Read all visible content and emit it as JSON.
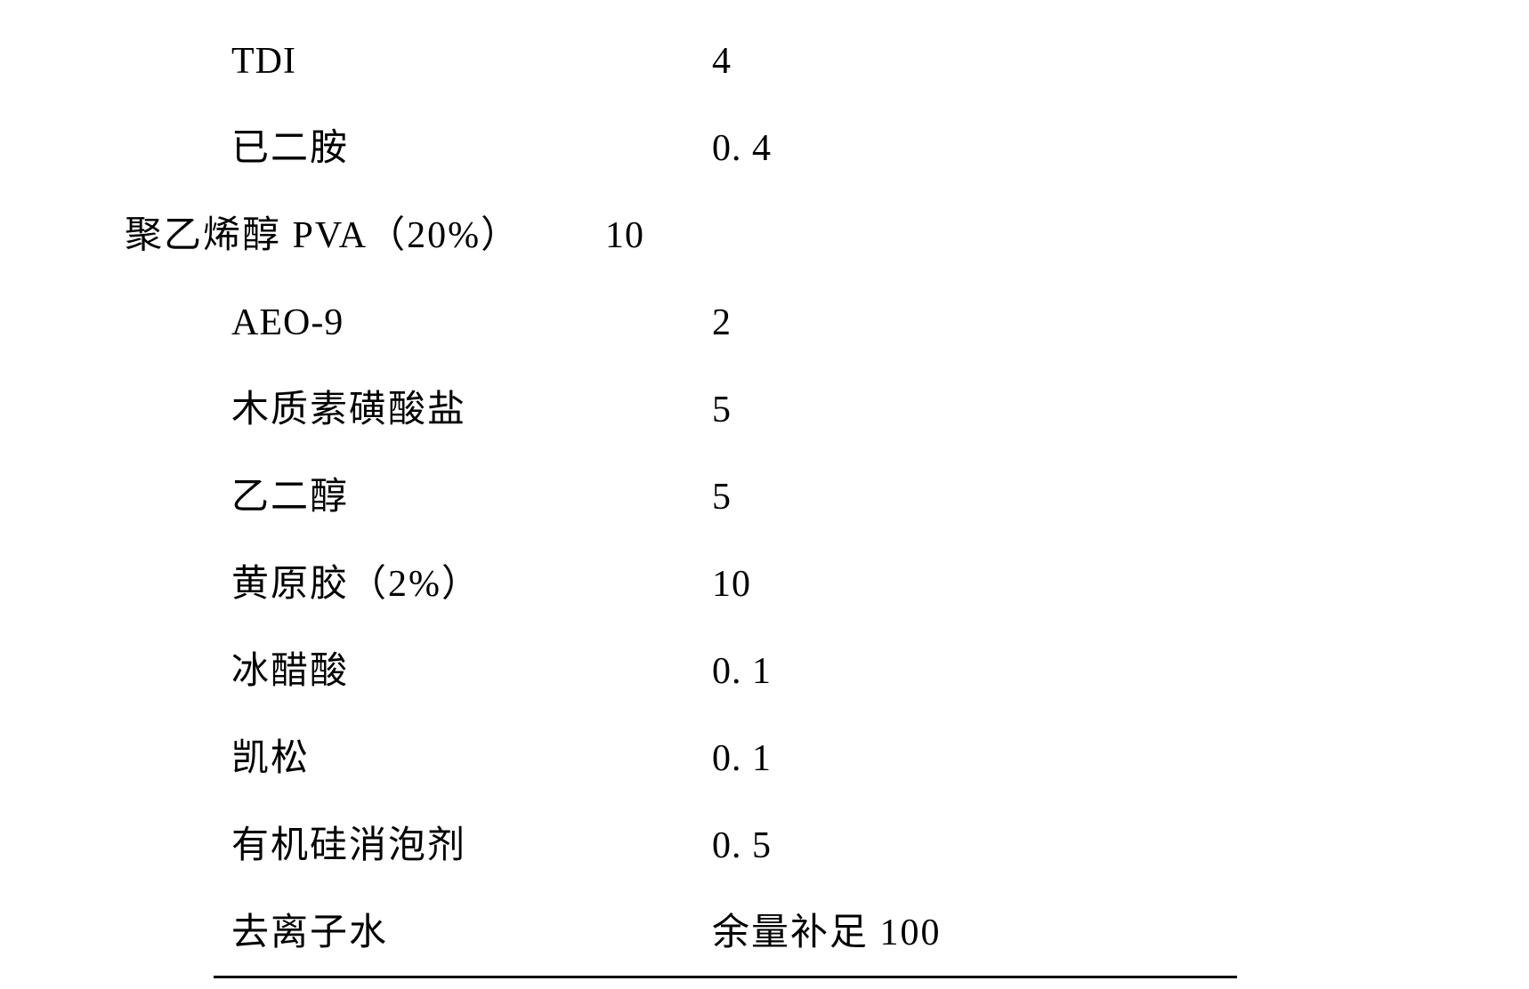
{
  "table": {
    "rows": [
      {
        "label": "TDI",
        "value": "4",
        "label_class": "english"
      },
      {
        "label": "已二胺",
        "value": "0. 4",
        "label_class": ""
      },
      {
        "label": "聚乙烯醇 PVA（20%）",
        "value": "10",
        "label_class": "shift-left"
      },
      {
        "label": "AEO-9",
        "value": "2",
        "label_class": "english"
      },
      {
        "label": "木质素磺酸盐",
        "value": "5",
        "label_class": ""
      },
      {
        "label": "乙二醇",
        "value": "5",
        "label_class": ""
      },
      {
        "label": "黄原胶（2%）",
        "value": "10",
        "label_class": ""
      },
      {
        "label": "冰醋酸",
        "value": "0. 1",
        "label_class": ""
      },
      {
        "label": "凯松",
        "value": "0. 1",
        "label_class": ""
      },
      {
        "label": "有机硅消泡剂",
        "value": "0. 5",
        "label_class": ""
      },
      {
        "label": "去离子水",
        "value": "余量补足 100",
        "label_class": "",
        "value_cjk": true
      }
    ],
    "font_size": 42,
    "text_color": "#000000",
    "background_color": "#ffffff",
    "underline_color": "#000000"
  }
}
